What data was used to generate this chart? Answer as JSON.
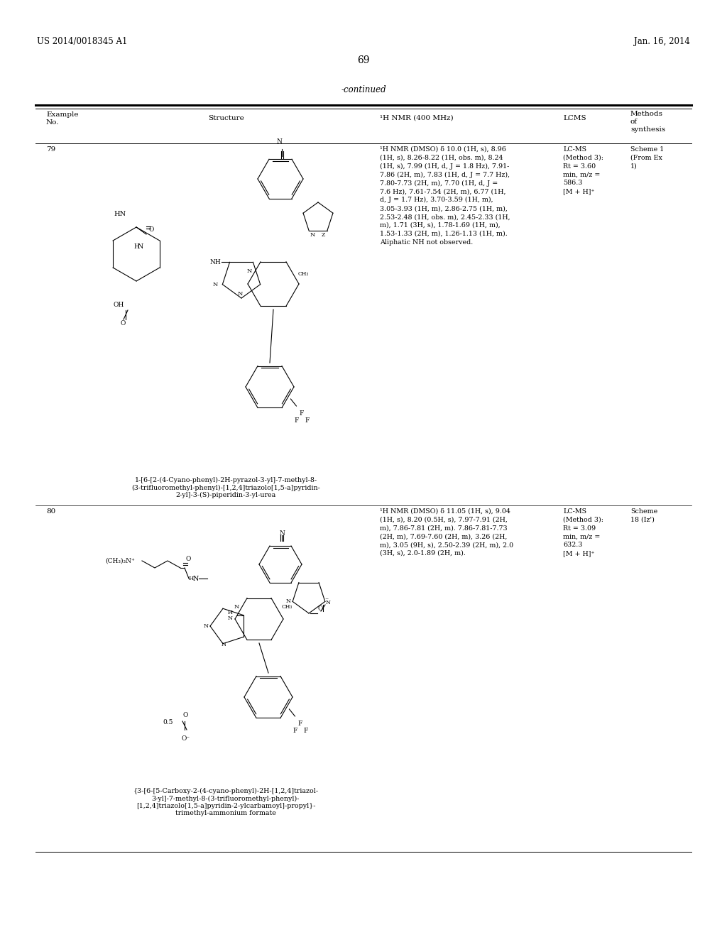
{
  "page_number": "69",
  "header_left": "US 2014/0018345 A1",
  "header_right": "Jan. 16, 2014",
  "continued_label": "-continued",
  "background_color": "#ffffff",
  "row79": {
    "example_no": "79",
    "nmr_text": "¹H NMR (DMSO) δ 10.0 (1H, s), 8.96\n(1H, s), 8.26-8.22 (1H, obs. m), 8.24\n(1H, s), 7.99 (1H, d, J = 1.8 Hz), 7.91-\n7.86 (2H, m), 7.83 (1H, d, J = 7.7 Hz),\n7.80-7.73 (2H, m), 7.70 (1H, d, J =\n7.6 Hz), 7.61-7.54 (2H, m), 6.77 (1H,\nd, J = 1.7 Hz), 3.70-3.59 (1H, m),\n3.05-3.93 (1H, m), 2.86-2.75 (1H, m),\n2.53-2.48 (1H, obs. m), 2.45-2.33 (1H,\nm), 1.71 (3H, s), 1.78-1.69 (1H, m),\n1.53-1.33 (2H, m), 1.26-1.13 (1H, m).\nAliphatic NH not observed.",
    "lcms_text": "LC-MS\n(Method 3):\nRt = 3.60\nmin, m/z =\n586.3\n[M + H]⁺",
    "synthesis_text": "Scheme 1\n(From Ex\n1)",
    "compound_name": "1-[6-[2-(4-Cyano-phenyl)-2H-pyrazol-3-yl]-7-methyl-8-\n(3-trifluoromethyl-phenyl)-[1,2,4]triazolo[1,5-a]pyridin-\n2-yl]-3-(S)-piperidin-3-yl-urea"
  },
  "row80": {
    "example_no": "80",
    "nmr_text": "¹H NMR (DMSO) δ 11.05 (1H, s), 9.04\n(1H, s), 8.20 (0.5H, s), 7.97-7.91 (2H,\nm), 7.86-7.81 (2H, m). 7.86-7.81-7.73\n(2H, m), 7.69-7.60 (2H, m), 3.26 (2H,\nm), 3.05 (9H, s), 2.50-2.39 (2H, m), 2.0\n(3H, s), 2.0-1.89 (2H, m).",
    "lcms_text": "LC-MS\n(Method 3):\nRt = 3.09\nmin, m/z =\n632.3\n[M + H]⁺",
    "synthesis_text": "Scheme\n18 (Iz')",
    "compound_name": "{3-[6-[5-Carboxy-2-(4-cyano-phenyl)-2H-[1,2,4]triazol-\n3-yl]-7-methyl-8-(3-trifluoromethyl-phenyl)-\n[1,2,4]triazolo[1,5-a]pyridin-2-ylcarbamoyl]-propyl}-\ntrimethyl-ammonium formate"
  }
}
